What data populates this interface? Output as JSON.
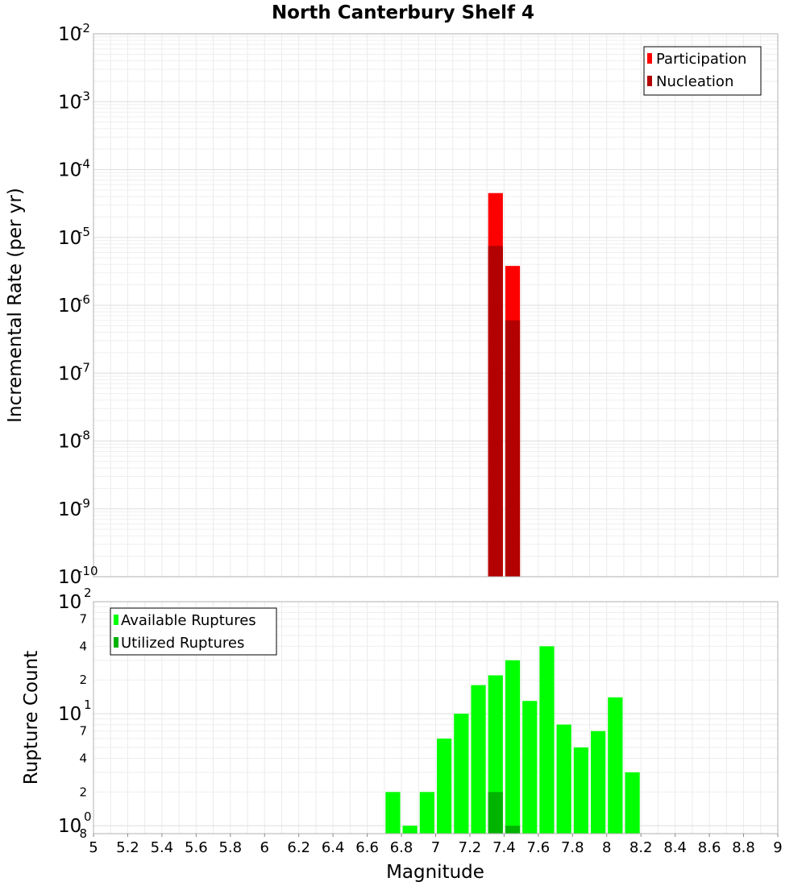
{
  "chart_data": [
    {
      "type": "bar",
      "title": "North Canterbury Shelf 4",
      "ylabel": "Incremental Rate (per yr)",
      "xlim": [
        5,
        9
      ],
      "ylim": [
        1e-10,
        0.01
      ],
      "y_scale": "log",
      "grid": true,
      "legend_position": "top-right",
      "bar_width": 0.1,
      "y_ticks": [
        {
          "base": "10",
          "exp": "-2",
          "value": 0.01
        },
        {
          "base": "10",
          "exp": "-3",
          "value": 0.001
        },
        {
          "base": "10",
          "exp": "-4",
          "value": 0.0001
        },
        {
          "base": "10",
          "exp": "-5",
          "value": 1e-05
        },
        {
          "base": "10",
          "exp": "-6",
          "value": 1e-06
        },
        {
          "base": "10",
          "exp": "-7",
          "value": 1e-07
        },
        {
          "base": "10",
          "exp": "-8",
          "value": 1e-08
        },
        {
          "base": "10",
          "exp": "-9",
          "value": 1e-09
        },
        {
          "base": "10",
          "exp": "-10",
          "value": 1e-10
        }
      ],
      "series": [
        {
          "name": "Participation",
          "color": "#ff0000",
          "x": [
            7.35,
            7.45
          ],
          "values": [
            4.5e-05,
            3.8e-06
          ]
        },
        {
          "name": "Nucleation",
          "color": "#b30000",
          "x": [
            7.35,
            7.45
          ],
          "values": [
            7.5e-06,
            6e-07
          ]
        }
      ]
    },
    {
      "type": "bar",
      "xlabel": "Magnitude",
      "ylabel": "Rupture Count",
      "xlim": [
        5,
        9
      ],
      "ylim": [
        0.85,
        100
      ],
      "y_scale": "log",
      "grid": true,
      "legend_position": "top-left",
      "bar_width": 0.1,
      "x_ticks": [
        "5",
        "5.2",
        "5.4",
        "5.6",
        "5.8",
        "6",
        "6.2",
        "6.4",
        "6.6",
        "6.8",
        "7",
        "7.2",
        "7.4",
        "7.6",
        "7.8",
        "8",
        "8.2",
        "8.4",
        "8.6",
        "8.8",
        "9"
      ],
      "y_major_ticks": [
        {
          "base": "10",
          "exp": "2",
          "value": 100
        },
        {
          "base": "10",
          "exp": "1",
          "value": 10
        },
        {
          "base": "10",
          "exp": "0",
          "value": 1
        }
      ],
      "y_minor_ticks": [
        {
          "label": "7",
          "value": 70
        },
        {
          "label": "4",
          "value": 40
        },
        {
          "label": "2",
          "value": 20
        },
        {
          "label": "7",
          "value": 7
        },
        {
          "label": "4",
          "value": 4
        },
        {
          "label": "2",
          "value": 2
        },
        {
          "label": "8",
          "value": 0.85
        }
      ],
      "series": [
        {
          "name": "Available Ruptures",
          "color": "#00ff00",
          "x": [
            6.75,
            6.85,
            6.95,
            7.05,
            7.15,
            7.25,
            7.35,
            7.45,
            7.55,
            7.65,
            7.75,
            7.85,
            7.95,
            8.05,
            8.15
          ],
          "values": [
            2,
            1,
            2,
            6,
            10,
            18,
            22,
            30,
            13,
            40,
            8,
            5,
            7,
            14,
            3
          ]
        },
        {
          "name": "Utilized Ruptures",
          "color": "#00b300",
          "x": [
            7.35,
            7.45
          ],
          "values": [
            2,
            1
          ]
        }
      ]
    }
  ]
}
